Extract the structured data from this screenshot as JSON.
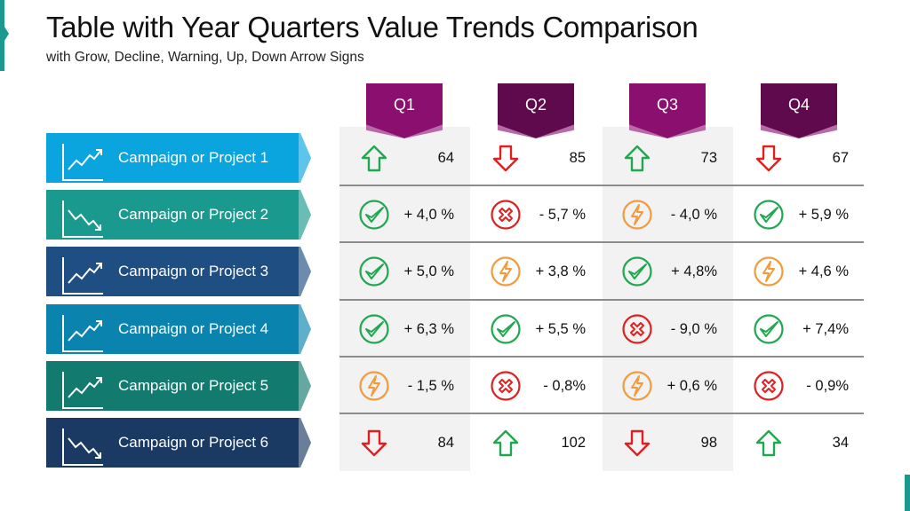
{
  "title": "Table with Year Quarters Value Trends Comparison",
  "subtitle": "with Grow, Decline, Warning, Up, Down Arrow Signs",
  "colors": {
    "accent": "#1a9a8e",
    "tab_light": "#8a0f6e",
    "tab_dark": "#5e0a4c",
    "green": "#1fa84f",
    "red": "#e02020",
    "orange": "#f39a3c"
  },
  "quarters": [
    {
      "label": "Q1"
    },
    {
      "label": "Q2"
    },
    {
      "label": "Q3"
    },
    {
      "label": "Q4"
    }
  ],
  "rows": [
    {
      "label": "Campaign or Project 1",
      "color": "#0aa5de",
      "trend_icon": "chart-up-icon",
      "cells": [
        {
          "icon": "arrow-up-icon",
          "value": "64"
        },
        {
          "icon": "arrow-down-icon",
          "value": "85"
        },
        {
          "icon": "arrow-up-icon",
          "value": "73"
        },
        {
          "icon": "arrow-down-icon",
          "value": "67"
        }
      ]
    },
    {
      "label": "Campaign or Project 2",
      "color": "#1a9a8e",
      "trend_icon": "chart-down-icon",
      "cells": [
        {
          "icon": "check-circle-icon",
          "value": "+ 4,0 %"
        },
        {
          "icon": "x-circle-icon",
          "value": "- 5,7 %"
        },
        {
          "icon": "lightning-circle-icon",
          "value": "- 4,0 %"
        },
        {
          "icon": "check-circle-icon",
          "value": "+ 5,9 %"
        }
      ]
    },
    {
      "label": "Campaign or Project 3",
      "color": "#1f4e82",
      "trend_icon": "chart-up-icon",
      "cells": [
        {
          "icon": "check-circle-icon",
          "value": "+ 5,0 %"
        },
        {
          "icon": "lightning-circle-icon",
          "value": "+ 3,8 %"
        },
        {
          "icon": "check-circle-icon",
          "value": "+ 4,8%"
        },
        {
          "icon": "lightning-circle-icon",
          "value": "+ 4,6 %"
        }
      ]
    },
    {
      "label": "Campaign or Project 4",
      "color": "#0a84ae",
      "trend_icon": "chart-up-icon",
      "cells": [
        {
          "icon": "check-circle-icon",
          "value": "+ 6,3 %"
        },
        {
          "icon": "check-circle-icon",
          "value": "+ 5,5 %"
        },
        {
          "icon": "x-circle-icon",
          "value": "- 9,0 %"
        },
        {
          "icon": "check-circle-icon",
          "value": "+ 7,4%"
        }
      ]
    },
    {
      "label": "Campaign or Project 5",
      "color": "#137a6f",
      "trend_icon": "chart-up-icon",
      "cells": [
        {
          "icon": "lightning-circle-icon",
          "value": "- 1,5 %"
        },
        {
          "icon": "x-circle-icon",
          "value": "- 0,8%"
        },
        {
          "icon": "lightning-circle-icon",
          "value": "+ 0,6 %"
        },
        {
          "icon": "x-circle-icon",
          "value": "- 0,9%"
        }
      ]
    },
    {
      "label": "Campaign or Project 6",
      "color": "#1b3a63",
      "trend_icon": "chart-down-icon",
      "cells": [
        {
          "icon": "arrow-down-icon",
          "value": "84"
        },
        {
          "icon": "arrow-up-icon",
          "value": "102"
        },
        {
          "icon": "arrow-down-icon",
          "value": "98"
        },
        {
          "icon": "arrow-up-icon",
          "value": "34"
        }
      ]
    }
  ]
}
